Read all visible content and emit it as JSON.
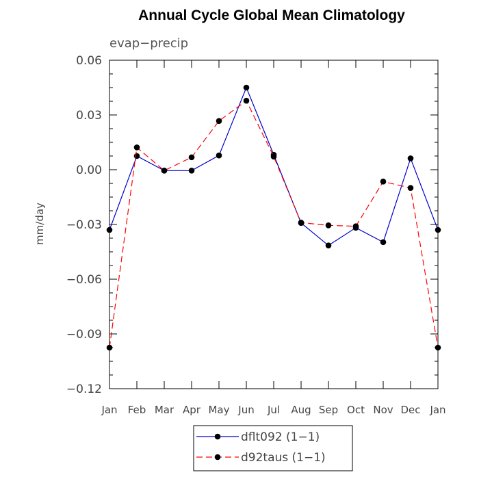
{
  "chart_data": {
    "type": "line",
    "title": "Annual Cycle Global Mean Climatology",
    "subtitle": "evap−precip",
    "xlabel": "",
    "ylabel": "mm/day",
    "categories": [
      "Jan",
      "Feb",
      "Mar",
      "Apr",
      "May",
      "Jun",
      "Jul",
      "Aug",
      "Sep",
      "Oct",
      "Nov",
      "Dec",
      "Jan"
    ],
    "ylim": [
      -0.12,
      0.06
    ],
    "yticks": [
      0.06,
      0.03,
      0.0,
      -0.03,
      -0.06,
      -0.09,
      -0.12
    ],
    "ytick_labels": [
      "0.06",
      "0.03",
      "0.00",
      "−0.03",
      "−0.06",
      "−0.09",
      "−0.12"
    ],
    "grid": false,
    "legend_position": "bottom-center",
    "series": [
      {
        "name": "dflt092 (1−1)",
        "color": "#0000cc",
        "dash": "solid",
        "values": [
          -0.033,
          0.0075,
          -0.0005,
          -0.0005,
          0.0078,
          0.045,
          0.0082,
          -0.0292,
          -0.0415,
          -0.0318,
          -0.0397,
          0.0062,
          -0.033
        ]
      },
      {
        "name": "d92taus (1−1)",
        "color": "#ff0000",
        "dash": "dashed",
        "values": [
          -0.0975,
          0.0122,
          -0.0005,
          0.0068,
          0.0267,
          0.0378,
          0.0072,
          -0.029,
          -0.0305,
          -0.031,
          -0.0065,
          -0.01,
          -0.0975
        ]
      }
    ]
  }
}
